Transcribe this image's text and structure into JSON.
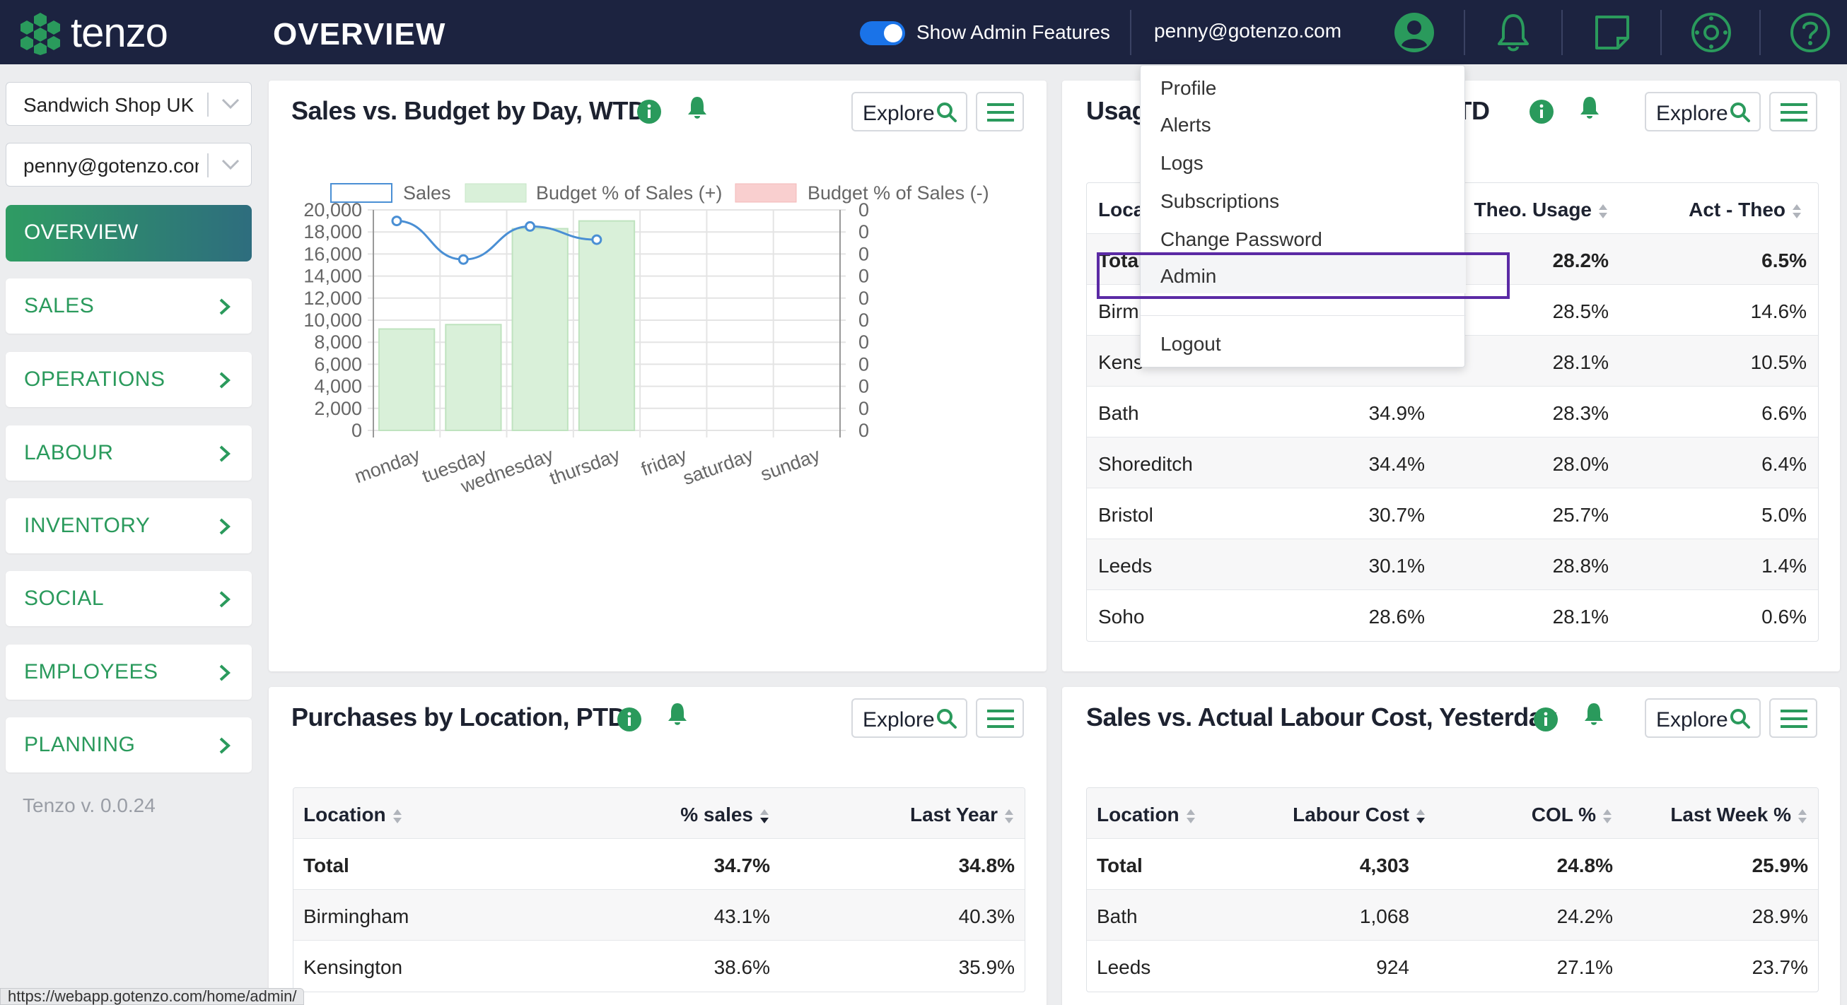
{
  "app": {
    "brand": "tenzo",
    "page_title": "OVERVIEW",
    "admin_toggle_label": "Show Admin Features",
    "admin_toggle_on": true,
    "user_email": "penny@gotenzo.com",
    "accent_color": "#2a9a5c",
    "navbar_color": "#1c2340"
  },
  "toolbar_icons": [
    "user-icon",
    "bell-icon",
    "notes-icon",
    "settings-icon",
    "help-icon"
  ],
  "sidebar": {
    "location_select": "Sandwich Shop UK",
    "user_select": "penny@gotenzo.com",
    "active_item": "OVERVIEW",
    "items": [
      {
        "label": "SALES"
      },
      {
        "label": "OPERATIONS"
      },
      {
        "label": "LABOUR"
      },
      {
        "label": "INVENTORY"
      },
      {
        "label": "SOCIAL"
      },
      {
        "label": "EMPLOYEES"
      },
      {
        "label": "PLANNING"
      }
    ],
    "version": "Tenzo v. 0.0.24"
  },
  "buttons": {
    "explore": "Explore"
  },
  "sales_budget": {
    "title": "Sales vs. Budget by Day, WTD"
  },
  "chart_data": {
    "type": "bar",
    "title": "Sales vs. Budget by Day, WTD",
    "categories": [
      "monday",
      "tuesday",
      "wednesday",
      "thursday",
      "friday",
      "saturday",
      "sunday"
    ],
    "series": [
      {
        "name": "Sales",
        "kind": "line",
        "color": "#4a8fd4",
        "values": [
          19000,
          15500,
          18500,
          17300,
          null,
          null,
          null
        ]
      },
      {
        "name": "Budget % of Sales (+)",
        "kind": "bar",
        "color": "#d9f0d9",
        "values": [
          9200,
          9600,
          18300,
          19000,
          null,
          null,
          null
        ]
      },
      {
        "name": "Budget % of Sales (-)",
        "kind": "bar",
        "color": "#f9cfcf",
        "values": [
          null,
          null,
          null,
          null,
          null,
          null,
          null
        ]
      }
    ],
    "ylim": [
      0,
      20000
    ],
    "y_ticks": [
      "20,000",
      "18,000",
      "16,000",
      "14,000",
      "12,000",
      "10,000",
      "8,000",
      "6,000",
      "4,000",
      "2,000",
      "0"
    ],
    "y2_ticks": [
      "0",
      "0",
      "0",
      "0",
      "0",
      "0",
      "0",
      "0",
      "0",
      "0",
      "0"
    ],
    "grid": true,
    "legend_position": "top"
  },
  "usage": {
    "title_left": "Usag",
    "title_right": "PTD",
    "headers": {
      "location": "Loca",
      "theo": "Theo. Usage",
      "diff": "Act - Theo"
    },
    "rows": [
      {
        "location": "Total",
        "actual": "",
        "theo": "28.2%",
        "diff": "6.5%",
        "total": true
      },
      {
        "location": "Birm",
        "actual": "",
        "theo": "28.5%",
        "diff": "14.6%"
      },
      {
        "location": "Kens",
        "actual": "",
        "theo": "28.1%",
        "diff": "10.5%"
      },
      {
        "location": "Bath",
        "actual": "34.9%",
        "theo": "28.3%",
        "diff": "6.6%"
      },
      {
        "location": "Shoreditch",
        "actual": "34.4%",
        "theo": "28.0%",
        "diff": "6.4%"
      },
      {
        "location": "Bristol",
        "actual": "30.7%",
        "theo": "25.7%",
        "diff": "5.0%"
      },
      {
        "location": "Leeds",
        "actual": "30.1%",
        "theo": "28.8%",
        "diff": "1.4%"
      },
      {
        "location": "Soho",
        "actual": "28.6%",
        "theo": "28.1%",
        "diff": "0.6%"
      }
    ]
  },
  "purchases": {
    "title": "Purchases by Location, PTD",
    "headers": {
      "location": "Location",
      "sales": "% sales",
      "last_year": "Last Year"
    },
    "rows": [
      {
        "location": "Total",
        "sales": "34.7%",
        "last_year": "34.8%",
        "total": true
      },
      {
        "location": "Birmingham",
        "sales": "43.1%",
        "last_year": "40.3%"
      },
      {
        "location": "Kensington",
        "sales": "38.6%",
        "last_year": "35.9%"
      }
    ]
  },
  "labour": {
    "title": "Sales vs. Actual Labour Cost, Yesterday",
    "headers": {
      "location": "Location",
      "labour_cost": "Labour Cost",
      "col": "COL %",
      "last_week": "Last Week %"
    },
    "rows": [
      {
        "location": "Total",
        "labour_cost": "4,303",
        "col": "24.8%",
        "last_week": "25.9%",
        "total": true
      },
      {
        "location": "Bath",
        "labour_cost": "1,068",
        "col": "24.2%",
        "last_week": "28.9%"
      },
      {
        "location": "Leeds",
        "labour_cost": "924",
        "col": "27.1%",
        "last_week": "23.7%"
      }
    ]
  },
  "user_menu": {
    "items": [
      "Profile",
      "Alerts",
      "Logs",
      "Subscriptions",
      "Change Password",
      "Admin"
    ],
    "logout": "Logout",
    "highlighted": "Admin"
  },
  "status_bar": {
    "url": "https://webapp.gotenzo.com/home/admin/"
  }
}
